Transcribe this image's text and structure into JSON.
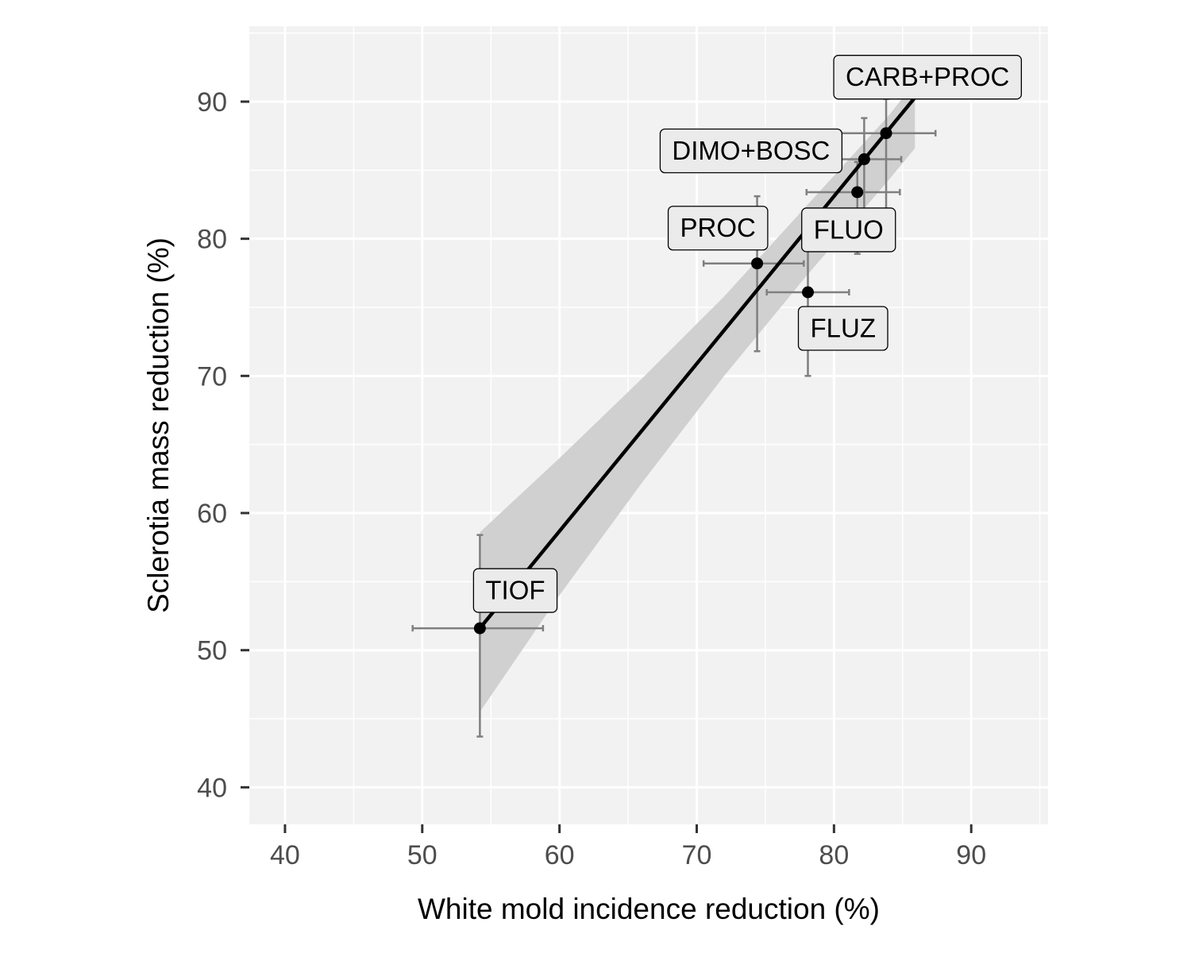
{
  "chart_data": {
    "type": "scatter",
    "xlabel": "White mold incidence reduction (%)",
    "ylabel": "Sclerotia mass reduction (%)",
    "xlim": [
      37.4,
      95.6
    ],
    "ylim": [
      37.3,
      95.5
    ],
    "x_ticks": [
      40,
      50,
      60,
      70,
      80,
      90
    ],
    "y_ticks": [
      40,
      50,
      60,
      70,
      80,
      90
    ],
    "x_tick_labels": [
      "40",
      "50",
      "60",
      "70",
      "80",
      "90"
    ],
    "y_tick_labels": [
      "40",
      "50",
      "60",
      "70",
      "80",
      "90"
    ],
    "grid": true,
    "background": "#f2f2f2",
    "gridline_color": "#ffffff",
    "point_color": "#000000",
    "errorbar_color": "#7f7f7f",
    "ribbon_color": "#d0d0d0",
    "label_fill": "#ebebeb",
    "points": [
      {
        "label": "CARB+PROC",
        "x": 83.8,
        "y": 87.7,
        "x_err": [
          80.2,
          87.4
        ],
        "y_err": [
          82.2,
          90.2
        ],
        "label_pos": "above-right"
      },
      {
        "label": "DIMO+BOSC",
        "x": 82.2,
        "y": 85.8,
        "x_err": [
          79.7,
          84.9
        ],
        "y_err": [
          81.8,
          88.8
        ],
        "label_pos": "left"
      },
      {
        "label": "FLUO",
        "x": 81.7,
        "y": 83.4,
        "x_err": [
          78.0,
          84.8
        ],
        "y_err": [
          78.9,
          85.6
        ],
        "label_pos": "below-left"
      },
      {
        "label": "PROC",
        "x": 74.4,
        "y": 78.2,
        "x_err": [
          70.5,
          77.8
        ],
        "y_err": [
          71.8,
          83.1
        ],
        "label_pos": "above-left"
      },
      {
        "label": "FLUZ",
        "x": 78.1,
        "y": 76.1,
        "x_err": [
          75.1,
          81.1
        ],
        "y_err": [
          70.0,
          81.6
        ],
        "label_pos": "below-right"
      },
      {
        "label": "TIOF",
        "x": 54.2,
        "y": 51.6,
        "x_err": [
          49.3,
          58.8
        ],
        "y_err": [
          43.7,
          58.4
        ],
        "label_pos": "above-right"
      }
    ],
    "fit_line": {
      "x": [
        54.2,
        85.9
      ],
      "y": [
        51.6,
        90.3
      ]
    },
    "confidence_band": {
      "upper": [
        [
          54.2,
          58.6
        ],
        [
          60.0,
          64.0
        ],
        [
          66.0,
          69.8
        ],
        [
          72.0,
          75.8
        ],
        [
          78.0,
          82.4
        ],
        [
          84.0,
          89.0
        ],
        [
          85.9,
          91.4
        ]
      ],
      "lower": [
        [
          54.2,
          45.5
        ],
        [
          60.0,
          54.0
        ],
        [
          66.0,
          62.2
        ],
        [
          72.0,
          70.0
        ],
        [
          78.0,
          77.3
        ],
        [
          84.0,
          84.3
        ],
        [
          85.9,
          86.6
        ]
      ]
    }
  }
}
